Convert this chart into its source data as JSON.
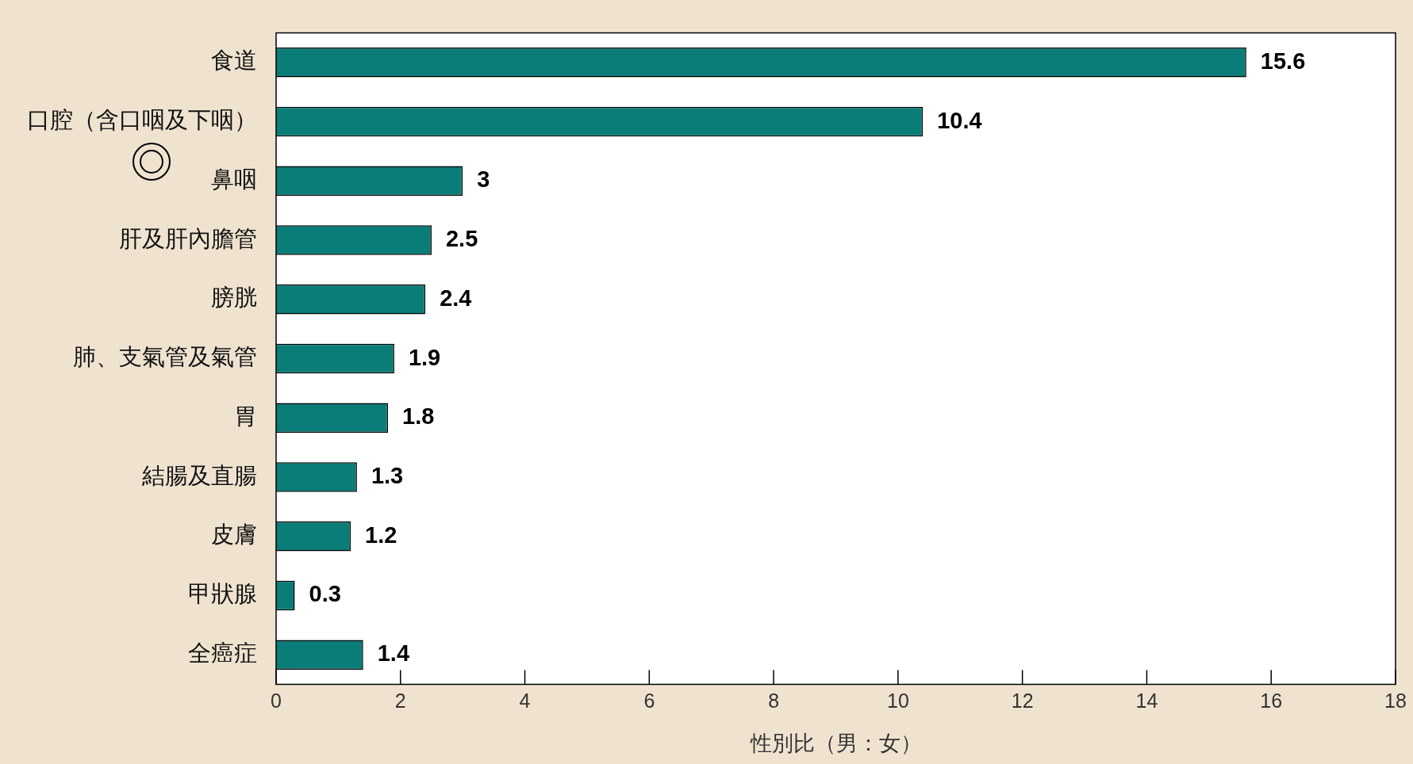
{
  "chart_data": {
    "type": "bar",
    "orientation": "horizontal",
    "categories": [
      "食道",
      "口腔（含口咽及下咽）",
      "鼻咽",
      "肝及肝內膽管",
      "膀胱",
      "肺、支氣管及氣管",
      "胃",
      "結腸及直腸",
      "皮膚",
      "甲狀腺",
      "全癌症"
    ],
    "values": [
      15.6,
      10.4,
      3,
      2.5,
      2.4,
      1.9,
      1.8,
      1.3,
      1.2,
      0.3,
      1.4
    ],
    "color": "#0b7d78",
    "xlabel": "性別比（男：女）",
    "xlim": [
      0,
      18
    ],
    "xticks": [
      0,
      2,
      4,
      6,
      8,
      10,
      12,
      14,
      16,
      18
    ],
    "grid": false,
    "legend": false,
    "data_labels": true
  }
}
